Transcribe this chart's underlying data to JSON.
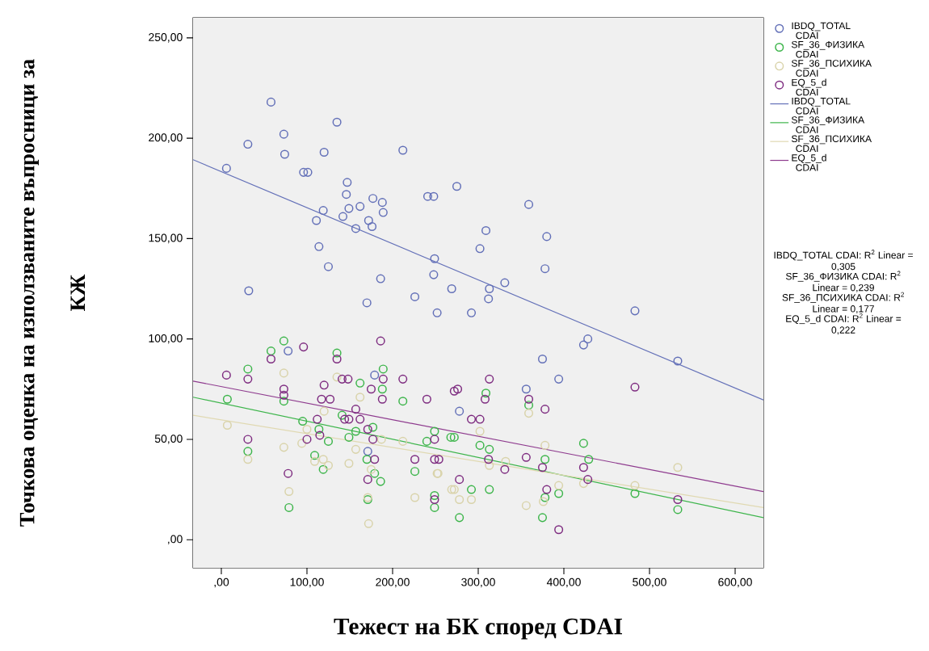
{
  "chart_data": {
    "type": "scatter",
    "xlabel": "Тежест на БК според CDAI",
    "ylabel": "Точкова оценка на използваните въпросници за КЖ",
    "xlim": [
      -33,
      633
    ],
    "ylim": [
      -14,
      260
    ],
    "xticks": [
      {
        "value": 0,
        "label": ",00"
      },
      {
        "value": 100,
        "label": "100,00"
      },
      {
        "value": 200,
        "label": "200,00"
      },
      {
        "value": 300,
        "label": "300,00"
      },
      {
        "value": 400,
        "label": "400,00"
      },
      {
        "value": 500,
        "label": "500,00"
      },
      {
        "value": 600,
        "label": "600,00"
      }
    ],
    "yticks": [
      {
        "value": 0,
        "label": ",00"
      },
      {
        "value": 50,
        "label": "50,00"
      },
      {
        "value": 100,
        "label": "100,00"
      },
      {
        "value": 150,
        "label": "150,00"
      },
      {
        "value": 200,
        "label": "200,00"
      },
      {
        "value": 250,
        "label": "250,00"
      }
    ],
    "marker": "circle",
    "legend": "right",
    "series": [
      {
        "name": "IBDQ_TOTAL CDAI",
        "color": "#6370b8",
        "x": [
          6,
          31,
          58,
          73,
          74,
          96,
          101,
          120,
          135,
          212,
          147,
          146,
          149,
          162,
          177,
          188,
          189,
          119,
          142,
          111,
          172,
          176,
          157,
          241,
          248,
          275,
          114,
          125,
          186,
          249,
          248,
          359,
          309,
          380,
          302,
          378,
          331,
          32,
          170,
          226,
          252,
          269,
          313,
          312,
          292,
          483,
          428,
          423,
          375,
          533,
          394,
          356,
          278,
          78,
          179,
          171
        ],
        "values": [
          185,
          197,
          218,
          202,
          192,
          183,
          183,
          193,
          208,
          194,
          178,
          172,
          165,
          166,
          170,
          168,
          163,
          164,
          161,
          159,
          159,
          156,
          155,
          171,
          171,
          176,
          146,
          136,
          130,
          140,
          132,
          167,
          154,
          151,
          145,
          135,
          128,
          124,
          118,
          121,
          113,
          125,
          125,
          120,
          113,
          114,
          100,
          97,
          90,
          89,
          80,
          75,
          64,
          94,
          82,
          44
        ]
      },
      {
        "name": "SF_36_ФИЗИКА CDAI",
        "color": "#3db54b",
        "x": [
          73,
          58,
          135,
          31,
          189,
          188,
          162,
          7,
          73,
          212,
          141,
          95,
          114,
          177,
          157,
          149,
          249,
          240,
          125,
          268,
          31,
          109,
          170,
          119,
          226,
          179,
          186,
          171,
          79,
          249,
          249,
          309,
          359,
          272,
          302,
          313,
          378,
          423,
          429,
          292,
          313,
          394,
          378,
          483,
          533,
          278,
          375
        ],
        "values": [
          99,
          94,
          93,
          85,
          85,
          75,
          78,
          70,
          69,
          69,
          62,
          59,
          55,
          56,
          54,
          51,
          54,
          49,
          49,
          51,
          44,
          42,
          40,
          35,
          34,
          33,
          29,
          20,
          16,
          16,
          22,
          73,
          67,
          51,
          47,
          45,
          40,
          48,
          40,
          25,
          25,
          23,
          21,
          23,
          15,
          11,
          11
        ]
      },
      {
        "name": "SF_36_ПСИХИКА CDAI",
        "color": "#d9d3aa",
        "x": [
          73,
          135,
          162,
          120,
          7,
          100,
          94,
          73,
          157,
          187,
          212,
          31,
          109,
          119,
          125,
          149,
          175,
          252,
          79,
          226,
          171,
          172,
          269,
          359,
          302,
          378,
          332,
          313,
          253,
          272,
          278,
          292,
          356,
          376,
          394,
          423,
          483,
          533
        ],
        "values": [
          83,
          81,
          71,
          64,
          57,
          55,
          48,
          46,
          45,
          50,
          49,
          40,
          39,
          40,
          37,
          38,
          35,
          33,
          24,
          21,
          21,
          8,
          25,
          63,
          54,
          47,
          39,
          37,
          33,
          25,
          20,
          20,
          17,
          19,
          27,
          28,
          27,
          36
        ]
      },
      {
        "name": "EQ_5_d CDAI",
        "color": "#7e2c80",
        "x": [
          186,
          96,
          58,
          135,
          6,
          31,
          141,
          148,
          189,
          212,
          120,
          175,
          73,
          73,
          240,
          188,
          117,
          127,
          157,
          144,
          149,
          162,
          112,
          115,
          100,
          177,
          249,
          31,
          171,
          179,
          226,
          249,
          254,
          78,
          171,
          249,
          272,
          276,
          313,
          308,
          359,
          378,
          483,
          292,
          302,
          312,
          356,
          331,
          375,
          423,
          428,
          278,
          380,
          533,
          394
        ],
        "values": [
          99,
          96,
          90,
          90,
          82,
          80,
          80,
          80,
          80,
          80,
          77,
          75,
          75,
          72,
          70,
          70,
          70,
          70,
          65,
          60,
          60,
          60,
          60,
          52,
          50,
          50,
          50,
          50,
          55,
          40,
          40,
          40,
          40,
          33,
          30,
          20,
          74,
          75,
          80,
          70,
          70,
          65,
          76,
          60,
          60,
          40,
          41,
          35,
          36,
          36,
          30,
          30,
          25,
          20,
          5
        ]
      },
      {
        "name": "IBDQ_TOTAL CDAI",
        "type": "line",
        "marker": "none",
        "color": "#6370b8",
        "x": [
          -33,
          633
        ],
        "values": [
          189.3,
          69.6
        ]
      },
      {
        "name": "SF_36_ФИЗИКА CDAI",
        "type": "line",
        "marker": "none",
        "color": "#3db54b",
        "x": [
          -33,
          633
        ],
        "values": [
          71,
          11
        ]
      },
      {
        "name": "SF_36_ПСИХИКА CDAI",
        "type": "line",
        "marker": "none",
        "color": "#e0d9b2",
        "x": [
          -33,
          633
        ],
        "values": [
          62,
          16
        ]
      },
      {
        "name": "EQ_5_d CDAI",
        "type": "line",
        "marker": "none",
        "color": "#8e3a8e",
        "x": [
          -33,
          633
        ],
        "values": [
          79,
          24
        ]
      }
    ],
    "annotations": [
      "IBDQ_TOTAL CDAI: R$^{2}$ Linear = 0,305",
      "SF_36_ФИЗИКА CDAI: R$^{2}$ Linear = 0,239",
      "SF_36_ПСИХИКА CDAI: R$^{2}$ Linear = 0,177",
      "EQ_5_d CDAI: R$^{2}$ Linear = 0,222"
    ]
  }
}
